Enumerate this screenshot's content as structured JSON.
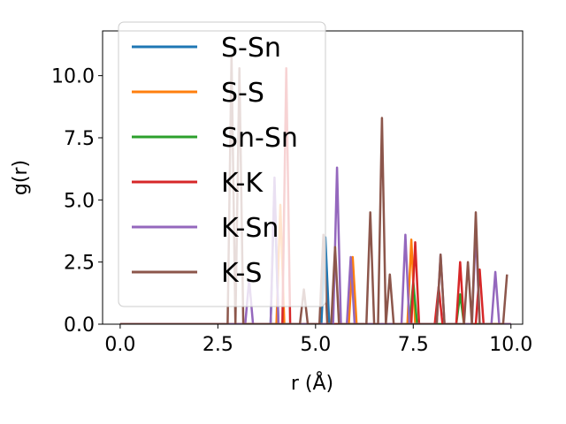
{
  "chart_data": {
    "type": "line",
    "title": "",
    "xlabel": "r (Å)",
    "ylabel": "g(r)",
    "xlim": [
      -0.45,
      10.3
    ],
    "ylim": [
      0,
      11.8
    ],
    "xticks": [
      0.0,
      2.5,
      5.0,
      7.5,
      10.0
    ],
    "xtick_labels": [
      "0.0",
      "2.5",
      "5.0",
      "7.5",
      "10.0"
    ],
    "yticks": [
      0.0,
      2.5,
      5.0,
      7.5,
      10.0
    ],
    "ytick_labels": [
      "0.0",
      "2.5",
      "5.0",
      "7.5",
      "10.0"
    ],
    "grid": false,
    "legend_position": "upper-left",
    "series": [
      {
        "name": "S-Sn",
        "color": "#1f77b4",
        "x": [
          0,
          3.85,
          3.95,
          4.05,
          4.15,
          5.15,
          5.25,
          5.35,
          10
        ],
        "y": [
          0,
          0,
          5.6,
          0,
          0,
          0,
          3.5,
          0,
          0
        ]
      },
      {
        "name": "S-S",
        "color": "#ff7f0e",
        "x": [
          0,
          4.0,
          4.1,
          4.2,
          5.85,
          5.95,
          6.05,
          7.35,
          7.45,
          7.55,
          10
        ],
        "y": [
          0,
          0,
          4.8,
          0,
          0,
          2.7,
          0,
          0,
          3.4,
          0,
          0
        ]
      },
      {
        "name": "Sn-Sn",
        "color": "#2ca02c",
        "x": [
          0,
          7.4,
          7.5,
          7.6,
          8.6,
          8.7,
          8.8,
          10
        ],
        "y": [
          0,
          0,
          1.7,
          0,
          0,
          1.2,
          0,
          0
        ]
      },
      {
        "name": "K-K",
        "color": "#d62728",
        "x": [
          0,
          4.15,
          4.25,
          4.35,
          7.45,
          7.55,
          7.65,
          8.05,
          8.15,
          8.25,
          8.6,
          8.7,
          8.8,
          9.1,
          9.2,
          9.3,
          10
        ],
        "y": [
          0,
          0,
          10.3,
          0,
          0,
          3.3,
          0,
          0,
          1.5,
          0,
          0,
          2.5,
          0,
          0,
          2.2,
          0,
          0
        ]
      },
      {
        "name": "K-Sn",
        "color": "#9467bd",
        "x": [
          0,
          3.2,
          3.3,
          3.4,
          3.85,
          3.95,
          4.05,
          5.45,
          5.55,
          5.65,
          5.8,
          5.9,
          6.0,
          7.2,
          7.3,
          7.4,
          8.1,
          8.2,
          8.3,
          9.0,
          9.1,
          9.2,
          9.5,
          9.6,
          9.7,
          10
        ],
        "y": [
          0,
          0,
          1.8,
          0,
          0,
          5.9,
          0,
          0,
          6.3,
          0,
          0,
          2.7,
          0,
          0,
          3.6,
          0,
          0,
          2.8,
          0,
          0,
          3.8,
          0,
          0,
          2.1,
          0,
          0
        ]
      },
      {
        "name": "K-S",
        "color": "#8c564b",
        "x": [
          0,
          2.75,
          2.85,
          2.95,
          3.05,
          3.15,
          4.6,
          4.7,
          4.8,
          5.0,
          5.1,
          5.2,
          5.3,
          5.4,
          5.5,
          5.6,
          6.3,
          6.4,
          6.5,
          6.6,
          6.7,
          6.8,
          6.9,
          7.0,
          7.1,
          7.9,
          8.0,
          8.1,
          8.2,
          8.3,
          8.4,
          8.8,
          8.9,
          9.0,
          9.1,
          9.2,
          9.3,
          9.7,
          9.8,
          9.9
        ],
        "y": [
          0,
          0,
          10.8,
          0,
          10.3,
          0,
          0,
          1.4,
          0,
          0,
          0,
          3.6,
          0,
          0,
          3.1,
          0,
          0,
          4.5,
          0,
          0,
          8.3,
          0,
          2.0,
          0,
          0,
          0,
          0,
          0,
          2.8,
          0,
          0,
          0,
          2.5,
          0,
          4.5,
          0,
          0,
          0,
          0,
          2.0
        ]
      }
    ]
  }
}
